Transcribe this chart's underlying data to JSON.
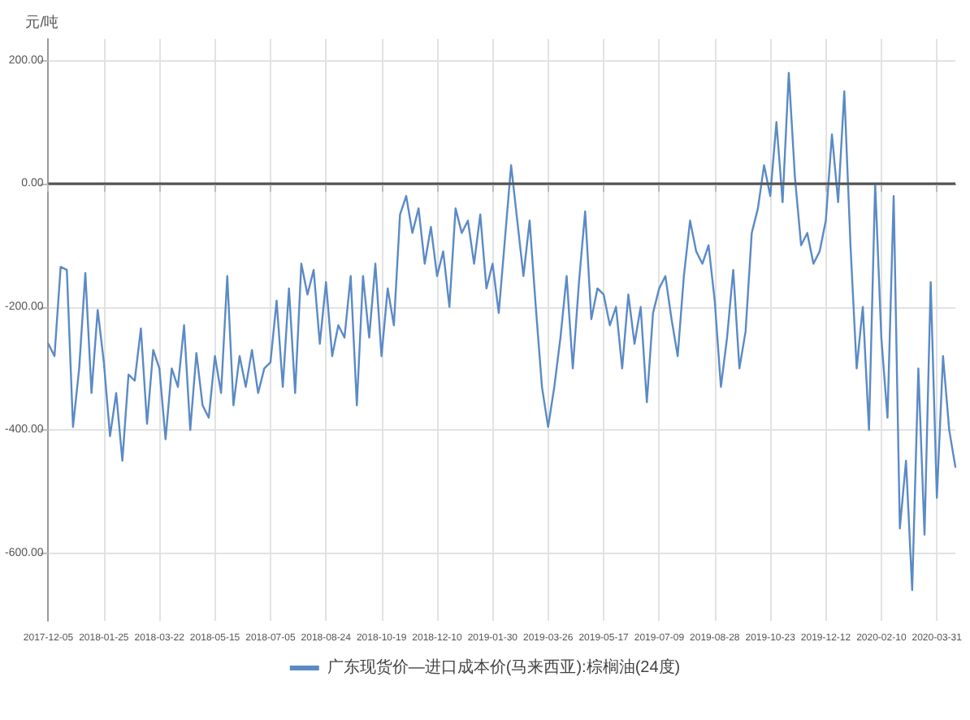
{
  "chart_data": {
    "type": "line",
    "ylabel": "元/吨",
    "categories": [
      "2017-12-05",
      null,
      null,
      null,
      null,
      null,
      null,
      null,
      null,
      "2018-01-25",
      null,
      null,
      null,
      null,
      null,
      null,
      null,
      null,
      "2018-03-22",
      null,
      null,
      null,
      null,
      null,
      null,
      null,
      null,
      "2018-05-15",
      null,
      null,
      null,
      null,
      null,
      null,
      null,
      null,
      "2018-07-05",
      null,
      null,
      null,
      null,
      null,
      null,
      null,
      null,
      "2018-08-24",
      null,
      null,
      null,
      null,
      null,
      null,
      null,
      null,
      "2018-10-19",
      null,
      null,
      null,
      null,
      null,
      null,
      null,
      null,
      "2018-12-10",
      null,
      null,
      null,
      null,
      null,
      null,
      null,
      null,
      "2019-01-30",
      null,
      null,
      null,
      null,
      null,
      null,
      null,
      null,
      "2019-03-26",
      null,
      null,
      null,
      null,
      null,
      null,
      null,
      null,
      "2019-05-17",
      null,
      null,
      null,
      null,
      null,
      null,
      null,
      null,
      "2019-07-09",
      null,
      null,
      null,
      null,
      null,
      null,
      null,
      null,
      "2019-08-28",
      null,
      null,
      null,
      null,
      null,
      null,
      null,
      null,
      "2019-10-23",
      null,
      null,
      null,
      null,
      null,
      null,
      null,
      null,
      "2019-12-12",
      null,
      null,
      null,
      null,
      null,
      null,
      null,
      null,
      "2020-02-10",
      null,
      null,
      null,
      null,
      null,
      null,
      null,
      null,
      "2020-03-31",
      null,
      null,
      null
    ],
    "series": [
      {
        "name": "广东现货价—进口成本价(马来西亚):棕榈油(24度)",
        "color": "#5b8ac6",
        "values": [
          -260,
          -280,
          -135,
          -140,
          -395,
          -300,
          -145,
          -340,
          -205,
          -290,
          -410,
          -340,
          -450,
          -310,
          -320,
          -235,
          -390,
          -270,
          -300,
          -415,
          -300,
          -330,
          -230,
          -400,
          -275,
          -360,
          -380,
          -280,
          -340,
          -150,
          -360,
          -280,
          -330,
          -270,
          -340,
          -300,
          -290,
          -190,
          -330,
          -170,
          -340,
          -130,
          -180,
          -140,
          -260,
          -160,
          -280,
          -230,
          -250,
          -150,
          -360,
          -150,
          -250,
          -130,
          -280,
          -170,
          -230,
          -50,
          -20,
          -80,
          -40,
          -130,
          -70,
          -150,
          -110,
          -200,
          -40,
          -80,
          -60,
          -130,
          -50,
          -170,
          -130,
          -210,
          -90,
          30,
          -60,
          -150,
          -60,
          -200,
          -330,
          -395,
          -330,
          -250,
          -150,
          -300,
          -160,
          -45,
          -220,
          -170,
          -180,
          -230,
          -200,
          -300,
          -180,
          -260,
          -200,
          -355,
          -210,
          -170,
          -150,
          -220,
          -280,
          -150,
          -60,
          -110,
          -130,
          -100,
          -190,
          -330,
          -250,
          -140,
          -300,
          -240,
          -80,
          -40,
          30,
          -20,
          100,
          -30,
          180,
          10,
          -100,
          -80,
          -130,
          -110,
          -60,
          80,
          -30,
          150,
          -100,
          -300,
          -200,
          -400,
          0,
          -250,
          -380,
          -20,
          -560,
          -450,
          -660,
          -300,
          -570,
          -160,
          -510,
          -280,
          -400,
          -460
        ]
      }
    ],
    "ylim": [
      -710,
      235
    ],
    "yticks": [
      {
        "value": -600,
        "label": "-600.00"
      },
      {
        "value": -400,
        "label": "-400.00"
      },
      {
        "value": -200,
        "label": "-200.00"
      },
      {
        "value": 0,
        "label": "0.00"
      },
      {
        "value": 200,
        "label": "200.00"
      }
    ],
    "ref_lines": [
      {
        "axis": "y",
        "value": 0,
        "color": "#555555"
      }
    ],
    "grid": true,
    "legend": "bottom",
    "marker": "none",
    "line_style": "solid"
  }
}
